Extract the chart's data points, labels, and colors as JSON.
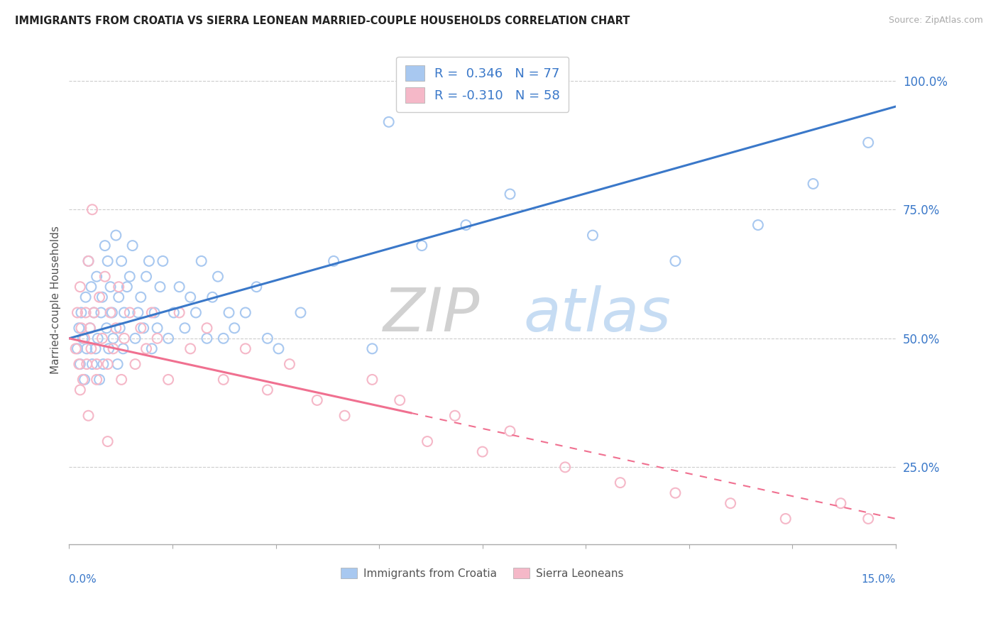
{
  "title": "IMMIGRANTS FROM CROATIA VS SIERRA LEONEAN MARRIED-COUPLE HOUSEHOLDS CORRELATION CHART",
  "source": "Source: ZipAtlas.com",
  "ylabel": "Married-couple Households",
  "yticks": [
    25.0,
    50.0,
    75.0,
    100.0
  ],
  "ytick_labels": [
    "25.0%",
    "50.0%",
    "75.0%",
    "100.0%"
  ],
  "xmin": 0.0,
  "xmax": 15.0,
  "ymin": 10.0,
  "ymax": 105.0,
  "blue_color": "#a8c8f0",
  "pink_color": "#f5b8c8",
  "blue_line_color": "#3a78c9",
  "pink_line_color": "#f07090",
  "legend_blue_label": "R =  0.346   N = 77",
  "legend_pink_label": "R = -0.310   N = 58",
  "legend_series_blue": "Immigrants from Croatia",
  "legend_series_pink": "Sierra Leoneans",
  "blue_line_x0": 0.0,
  "blue_line_y0": 50.0,
  "blue_line_x1": 15.0,
  "blue_line_y1": 95.0,
  "pink_line_x0": 0.0,
  "pink_line_y0": 50.0,
  "pink_solid_x1": 6.2,
  "pink_line_x1": 15.0,
  "pink_line_y1": 15.0,
  "blue_scatter_x": [
    0.15,
    0.18,
    0.2,
    0.22,
    0.25,
    0.28,
    0.3,
    0.32,
    0.35,
    0.38,
    0.4,
    0.42,
    0.45,
    0.48,
    0.5,
    0.52,
    0.55,
    0.58,
    0.6,
    0.62,
    0.65,
    0.68,
    0.7,
    0.72,
    0.75,
    0.78,
    0.8,
    0.85,
    0.88,
    0.9,
    0.92,
    0.95,
    0.98,
    1.0,
    1.05,
    1.1,
    1.15,
    1.2,
    1.25,
    1.3,
    1.35,
    1.4,
    1.45,
    1.5,
    1.55,
    1.6,
    1.65,
    1.7,
    1.8,
    1.9,
    2.0,
    2.1,
    2.2,
    2.3,
    2.4,
    2.5,
    2.6,
    2.7,
    2.8,
    2.9,
    3.0,
    3.2,
    3.4,
    3.6,
    3.8,
    4.2,
    4.8,
    5.5,
    6.4,
    7.2,
    8.0,
    9.5,
    11.0,
    12.5,
    13.5,
    14.5,
    5.8
  ],
  "blue_scatter_y": [
    48,
    52,
    45,
    55,
    50,
    42,
    58,
    48,
    65,
    52,
    60,
    45,
    55,
    48,
    62,
    50,
    42,
    55,
    58,
    45,
    68,
    52,
    65,
    48,
    60,
    55,
    50,
    70,
    45,
    58,
    52,
    65,
    48,
    55,
    60,
    62,
    68,
    50,
    55,
    58,
    52,
    62,
    65,
    48,
    55,
    52,
    60,
    65,
    50,
    55,
    60,
    52,
    58,
    55,
    65,
    50,
    58,
    62,
    50,
    55,
    52,
    55,
    60,
    50,
    48,
    55,
    65,
    48,
    68,
    72,
    78,
    70,
    65,
    72,
    80,
    88,
    92
  ],
  "pink_scatter_x": [
    0.12,
    0.15,
    0.18,
    0.2,
    0.22,
    0.25,
    0.28,
    0.3,
    0.32,
    0.35,
    0.38,
    0.4,
    0.42,
    0.45,
    0.5,
    0.55,
    0.6,
    0.65,
    0.7,
    0.75,
    0.8,
    0.85,
    0.9,
    0.95,
    1.0,
    1.1,
    1.2,
    1.3,
    1.4,
    1.5,
    1.6,
    1.8,
    2.0,
    2.2,
    2.5,
    2.8,
    3.2,
    3.6,
    4.0,
    4.5,
    5.0,
    5.5,
    6.0,
    6.5,
    7.0,
    7.5,
    8.0,
    9.0,
    10.0,
    11.0,
    12.0,
    13.0,
    14.0,
    14.5,
    0.2,
    0.35,
    0.5,
    0.7
  ],
  "pink_scatter_y": [
    48,
    55,
    45,
    60,
    52,
    42,
    50,
    55,
    45,
    65,
    52,
    48,
    75,
    55,
    45,
    58,
    50,
    62,
    45,
    55,
    48,
    52,
    60,
    42,
    50,
    55,
    45,
    52,
    48,
    55,
    50,
    42,
    55,
    48,
    52,
    42,
    48,
    40,
    45,
    38,
    35,
    42,
    38,
    30,
    35,
    28,
    32,
    25,
    22,
    20,
    18,
    15,
    18,
    15,
    40,
    35,
    42,
    30
  ]
}
